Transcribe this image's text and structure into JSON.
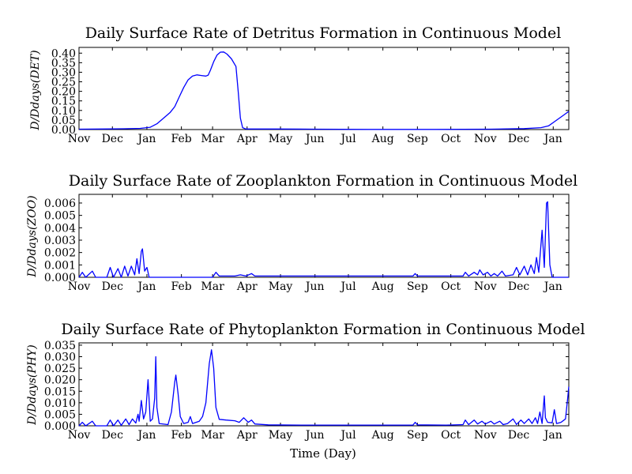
{
  "figure": {
    "xlabel": "Time (Day)",
    "line_color": "#0000ff"
  },
  "chart_data": [
    {
      "type": "line",
      "title": "Daily Surface Rate of Detritus Formation in Continuous Model",
      "xlabel": "",
      "ylabel": "D/Ddays(DET)",
      "xlim": [
        0,
        440
      ],
      "ylim": [
        0,
        0.43
      ],
      "x_tick_labels": [
        {
          "label": "Nov",
          "x": 0
        },
        {
          "label": "Dec",
          "x": 30
        },
        {
          "label": "Jan",
          "x": 61
        },
        {
          "label": "Feb",
          "x": 92
        },
        {
          "label": "Mar",
          "x": 120
        },
        {
          "label": "Apr",
          "x": 151
        },
        {
          "label": "May",
          "x": 181
        },
        {
          "label": "Jun",
          "x": 212
        },
        {
          "label": "Jul",
          "x": 242
        },
        {
          "label": "Aug",
          "x": 273
        },
        {
          "label": "Sep",
          "x": 304
        },
        {
          "label": "Oct",
          "x": 334
        },
        {
          "label": "Nov",
          "x": 365
        },
        {
          "label": "Dec",
          "x": 395
        },
        {
          "label": "Jan",
          "x": 426
        }
      ],
      "y_ticks": [
        {
          "label": "0.00",
          "value": 0
        },
        {
          "label": "0.05",
          "value": 0.05
        },
        {
          "label": "0.10",
          "value": 0.1
        },
        {
          "label": "0.15",
          "value": 0.15
        },
        {
          "label": "0.20",
          "value": 0.2
        },
        {
          "label": "0.25",
          "value": 0.25
        },
        {
          "label": "0.30",
          "value": 0.3
        },
        {
          "label": "0.35",
          "value": 0.35
        },
        {
          "label": "0.40",
          "value": 0.4
        }
      ],
      "series": [
        {
          "points": [
            [
              0,
              0.002
            ],
            [
              20,
              0.003
            ],
            [
              40,
              0.004
            ],
            [
              55,
              0.006
            ],
            [
              64,
              0.012
            ],
            [
              70,
              0.03
            ],
            [
              76,
              0.06
            ],
            [
              82,
              0.09
            ],
            [
              86,
              0.12
            ],
            [
              90,
              0.17
            ],
            [
              94,
              0.22
            ],
            [
              98,
              0.26
            ],
            [
              102,
              0.28
            ],
            [
              106,
              0.286
            ],
            [
              110,
              0.283
            ],
            [
              114,
              0.28
            ],
            [
              116,
              0.285
            ],
            [
              118,
              0.31
            ],
            [
              121,
              0.355
            ],
            [
              124,
              0.39
            ],
            [
              127,
              0.405
            ],
            [
              130,
              0.406
            ],
            [
              133,
              0.395
            ],
            [
              137,
              0.37
            ],
            [
              141,
              0.33
            ],
            [
              143,
              0.2
            ],
            [
              145,
              0.06
            ],
            [
              147,
              0.01
            ],
            [
              150,
              0.003
            ],
            [
              180,
              0.003
            ],
            [
              210,
              0.002
            ],
            [
              260,
              0.001
            ],
            [
              320,
              0.001
            ],
            [
              370,
              0.002
            ],
            [
              400,
              0.005
            ],
            [
              415,
              0.01
            ],
            [
              422,
              0.02
            ],
            [
              428,
              0.045
            ],
            [
              434,
              0.07
            ],
            [
              440,
              0.095
            ]
          ]
        }
      ]
    },
    {
      "type": "line",
      "title": "Daily Surface Rate of Zooplankton Formation in Continuous Model",
      "xlabel": "",
      "ylabel": "D/Ddays(ZOO)",
      "xlim": [
        0,
        440
      ],
      "ylim": [
        0,
        0.0067
      ],
      "x_tick_labels": [
        {
          "label": "Nov",
          "x": 0
        },
        {
          "label": "Dec",
          "x": 30
        },
        {
          "label": "Jan",
          "x": 61
        },
        {
          "label": "Feb",
          "x": 92
        },
        {
          "label": "Mar",
          "x": 120
        },
        {
          "label": "Apr",
          "x": 151
        },
        {
          "label": "May",
          "x": 181
        },
        {
          "label": "Jun",
          "x": 212
        },
        {
          "label": "Jul",
          "x": 242
        },
        {
          "label": "Aug",
          "x": 273
        },
        {
          "label": "Sep",
          "x": 304
        },
        {
          "label": "Oct",
          "x": 334
        },
        {
          "label": "Nov",
          "x": 365
        },
        {
          "label": "Dec",
          "x": 395
        },
        {
          "label": "Jan",
          "x": 426
        }
      ],
      "y_ticks": [
        {
          "label": "0.000",
          "value": 0
        },
        {
          "label": "0.001",
          "value": 0.001
        },
        {
          "label": "0.002",
          "value": 0.002
        },
        {
          "label": "0.003",
          "value": 0.003
        },
        {
          "label": "0.004",
          "value": 0.004
        },
        {
          "label": "0.005",
          "value": 0.005
        },
        {
          "label": "0.006",
          "value": 0.006
        }
      ],
      "series": [
        {
          "points": [
            [
              0,
              0
            ],
            [
              3,
              0.0004
            ],
            [
              6,
              0
            ],
            [
              12,
              0.0005
            ],
            [
              15,
              0
            ],
            [
              25,
              0
            ],
            [
              28,
              0.0008
            ],
            [
              31,
              0
            ],
            [
              35,
              0.0007
            ],
            [
              38,
              0
            ],
            [
              41,
              0.0009
            ],
            [
              44,
              0.0001
            ],
            [
              47,
              0.0009
            ],
            [
              50,
              0.0002
            ],
            [
              52,
              0.0015
            ],
            [
              54,
              0.0003
            ],
            [
              56,
              0.0021
            ],
            [
              57,
              0.0023
            ],
            [
              59,
              0.0005
            ],
            [
              61,
              0.0008
            ],
            [
              63,
              0
            ],
            [
              120,
              0
            ],
            [
              123,
              0.0004
            ],
            [
              126,
              0.0001
            ],
            [
              140,
              0.0001
            ],
            [
              145,
              0.0002
            ],
            [
              150,
              0.0001
            ],
            [
              155,
              0.0003
            ],
            [
              158,
              0.0001
            ],
            [
              200,
              0.0001
            ],
            [
              250,
              0.0001
            ],
            [
              300,
              0.0001
            ],
            [
              302,
              0.0003
            ],
            [
              304,
              0.0001
            ],
            [
              330,
              0.0001
            ],
            [
              345,
              0.0001
            ],
            [
              347,
              0.0004
            ],
            [
              350,
              0.0001
            ],
            [
              355,
              0.0004
            ],
            [
              358,
              0.0002
            ],
            [
              360,
              0.0006
            ],
            [
              363,
              0.0002
            ],
            [
              367,
              0.0004
            ],
            [
              370,
              0.0001
            ],
            [
              373,
              0.0003
            ],
            [
              376,
              0.0001
            ],
            [
              380,
              0.0005
            ],
            [
              383,
              0.0001
            ],
            [
              390,
              0.0002
            ],
            [
              393,
              0.0008
            ],
            [
              396,
              0.0002
            ],
            [
              400,
              0.0009
            ],
            [
              403,
              0.0002
            ],
            [
              406,
              0.001
            ],
            [
              409,
              0.0003
            ],
            [
              411,
              0.0016
            ],
            [
              413,
              0.0004
            ],
            [
              416,
              0.0038
            ],
            [
              418,
              0.0008
            ],
            [
              420,
              0.006
            ],
            [
              421,
              0.0061
            ],
            [
              423,
              0.001
            ],
            [
              425,
              0
            ],
            [
              440,
              0
            ]
          ]
        }
      ]
    },
    {
      "type": "line",
      "title": "Daily Surface Rate of Phytoplankton Formation in Continuous Model",
      "xlabel": "Time (Day)",
      "ylabel": "D/Ddays(PHY)",
      "xlim": [
        0,
        440
      ],
      "ylim": [
        0,
        0.036
      ],
      "x_tick_labels": [
        {
          "label": "Nov",
          "x": 0
        },
        {
          "label": "Dec",
          "x": 30
        },
        {
          "label": "Jan",
          "x": 61
        },
        {
          "label": "Feb",
          "x": 92
        },
        {
          "label": "Mar",
          "x": 120
        },
        {
          "label": "Apr",
          "x": 151
        },
        {
          "label": "May",
          "x": 181
        },
        {
          "label": "Jun",
          "x": 212
        },
        {
          "label": "Jul",
          "x": 242
        },
        {
          "label": "Aug",
          "x": 273
        },
        {
          "label": "Sep",
          "x": 304
        },
        {
          "label": "Oct",
          "x": 334
        },
        {
          "label": "Nov",
          "x": 365
        },
        {
          "label": "Dec",
          "x": 395
        },
        {
          "label": "Jan",
          "x": 426
        }
      ],
      "y_ticks": [
        {
          "label": "0.000",
          "value": 0
        },
        {
          "label": "0.005",
          "value": 0.005
        },
        {
          "label": "0.010",
          "value": 0.01
        },
        {
          "label": "0.015",
          "value": 0.015
        },
        {
          "label": "0.020",
          "value": 0.02
        },
        {
          "label": "0.025",
          "value": 0.025
        },
        {
          "label": "0.030",
          "value": 0.03
        },
        {
          "label": "0.035",
          "value": 0.035
        }
      ],
      "series": [
        {
          "points": [
            [
              0,
              0
            ],
            [
              3,
              0.0015
            ],
            [
              6,
              0
            ],
            [
              12,
              0.002
            ],
            [
              15,
              0
            ],
            [
              25,
              0
            ],
            [
              28,
              0.0025
            ],
            [
              31,
              0
            ],
            [
              35,
              0.0025
            ],
            [
              38,
              0.0002
            ],
            [
              42,
              0.003
            ],
            [
              45,
              0.0005
            ],
            [
              48,
              0.003
            ],
            [
              51,
              0.0012
            ],
            [
              53,
              0.005
            ],
            [
              54,
              0.002
            ],
            [
              56,
              0.011
            ],
            [
              58,
              0.003
            ],
            [
              60,
              0.006
            ],
            [
              62,
              0.02
            ],
            [
              64,
              0.002
            ],
            [
              66,
              0.003
            ],
            [
              68,
              0.012
            ],
            [
              69,
              0.03
            ],
            [
              70,
              0.008
            ],
            [
              72,
              0.001
            ],
            [
              80,
              0.0005
            ],
            [
              83,
              0.006
            ],
            [
              86,
              0.019
            ],
            [
              87,
              0.022
            ],
            [
              89,
              0.014
            ],
            [
              91,
              0.004
            ],
            [
              94,
              0.001
            ],
            [
              98,
              0.0015
            ],
            [
              100,
              0.004
            ],
            [
              102,
              0.001
            ],
            [
              108,
              0.002
            ],
            [
              111,
              0.004
            ],
            [
              114,
              0.01
            ],
            [
              117,
              0.027
            ],
            [
              119,
              0.033
            ],
            [
              121,
              0.025
            ],
            [
              123,
              0.008
            ],
            [
              126,
              0.0028
            ],
            [
              132,
              0.0025
            ],
            [
              140,
              0.0022
            ],
            [
              144,
              0.0015
            ],
            [
              148,
              0.0035
            ],
            [
              152,
              0.0015
            ],
            [
              155,
              0.0025
            ],
            [
              158,
              0.0008
            ],
            [
              170,
              0.0004
            ],
            [
              200,
              0.0003
            ],
            [
              250,
              0.0003
            ],
            [
              300,
              0.0003
            ],
            [
              302,
              0.0015
            ],
            [
              304,
              0.0004
            ],
            [
              330,
              0.0003
            ],
            [
              345,
              0.0005
            ],
            [
              347,
              0.0025
            ],
            [
              350,
              0.0005
            ],
            [
              355,
              0.0025
            ],
            [
              358,
              0.0008
            ],
            [
              362,
              0.002
            ],
            [
              365,
              0.0008
            ],
            [
              370,
              0.002
            ],
            [
              373,
              0.0008
            ],
            [
              378,
              0.002
            ],
            [
              381,
              0.0005
            ],
            [
              385,
              0.001
            ],
            [
              390,
              0.003
            ],
            [
              393,
              0.0006
            ],
            [
              397,
              0.0025
            ],
            [
              400,
              0.001
            ],
            [
              404,
              0.003
            ],
            [
              407,
              0.001
            ],
            [
              410,
              0.0035
            ],
            [
              412,
              0.001
            ],
            [
              414,
              0.006
            ],
            [
              416,
              0.001
            ],
            [
              418,
              0.013
            ],
            [
              419,
              0.0035
            ],
            [
              421,
              0.0015
            ],
            [
              425,
              0.0013
            ],
            [
              427,
              0.007
            ],
            [
              429,
              0.001
            ],
            [
              433,
              0.0015
            ],
            [
              437,
              0.003
            ],
            [
              439,
              0.012
            ],
            [
              440,
              0.017
            ]
          ]
        }
      ]
    }
  ]
}
